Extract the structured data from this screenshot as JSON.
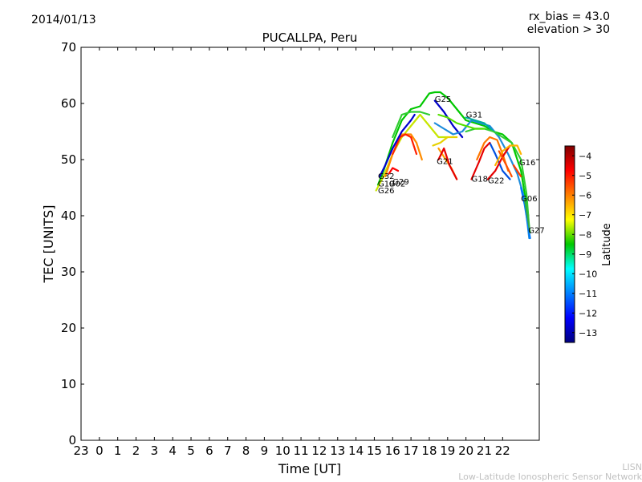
{
  "header": {
    "date": "2014/01/13",
    "rx_bias": "rx_bias = 43.0",
    "elevation": "elevation > 30"
  },
  "footer": {
    "org_abbrev": "LISN",
    "org_name": "Low-Latitude Ionospheric Sensor Network"
  },
  "chart_data": {
    "type": "line",
    "title": "PUCALLPA, Peru",
    "xlabel": "Time [UT]",
    "ylabel": "TEC [UNITS]",
    "xlim": [
      -1,
      24
    ],
    "ylim": [
      0,
      70
    ],
    "x_ticks": [
      -1,
      0,
      1,
      2,
      3,
      4,
      5,
      6,
      7,
      8,
      9,
      10,
      11,
      12,
      13,
      14,
      15,
      16,
      17,
      18,
      19,
      20,
      21,
      22
    ],
    "x_tick_labels": [
      "23",
      "0",
      "1",
      "2",
      "3",
      "4",
      "5",
      "6",
      "7",
      "8",
      "9",
      "10",
      "11",
      "12",
      "13",
      "14",
      "15",
      "16",
      "17",
      "18",
      "19",
      "20",
      "21",
      "22"
    ],
    "y_ticks": [
      0,
      10,
      20,
      30,
      40,
      50,
      60,
      70
    ],
    "y_tick_labels": [
      "0",
      "10",
      "20",
      "30",
      "40",
      "50",
      "60",
      "70"
    ],
    "grid": false,
    "colorbar": {
      "label": "Latitude",
      "range": [
        -13.5,
        -3.5
      ],
      "ticks": [
        -4,
        -5,
        -6,
        -7,
        -8,
        -9,
        -10,
        -11,
        -12,
        -13
      ],
      "tick_labels": [
        "−4",
        "−5",
        "−6",
        "−7",
        "−8",
        "−9",
        "−10",
        "−11",
        "−12",
        "−13"
      ],
      "colormap": "jet"
    },
    "series": [
      {
        "name": "G25",
        "color": "#00c800",
        "points": [
          [
            15.2,
            45.5
          ],
          [
            15.5,
            48
          ],
          [
            16.0,
            53
          ],
          [
            16.5,
            57
          ],
          [
            17.0,
            59
          ],
          [
            17.5,
            59.5
          ],
          [
            18.0,
            61.8
          ],
          [
            18.3,
            62
          ],
          [
            18.6,
            62
          ],
          [
            19.0,
            61
          ],
          [
            19.5,
            59
          ],
          [
            20.0,
            57
          ],
          [
            20.5,
            56.5
          ],
          [
            21.0,
            56
          ],
          [
            21.5,
            55
          ],
          [
            22.0,
            54.5
          ],
          [
            22.5,
            53
          ],
          [
            23.0,
            48
          ],
          [
            23.2,
            44
          ],
          [
            23.4,
            40
          ]
        ]
      },
      {
        "name": "G25",
        "color": "#0000c8",
        "points": [
          [
            18.3,
            60.5
          ],
          [
            18.8,
            58.5
          ],
          [
            19.3,
            56
          ],
          [
            19.8,
            54
          ]
        ]
      },
      {
        "name": "G31",
        "color": "#1e8cdc",
        "points": [
          [
            18.3,
            56.5
          ],
          [
            18.8,
            55.5
          ],
          [
            19.3,
            54.5
          ],
          [
            19.8,
            55
          ],
          [
            20.3,
            57
          ],
          [
            20.8,
            56.5
          ],
          [
            21.3,
            56
          ],
          [
            21.8,
            54
          ],
          [
            22.3,
            51
          ],
          [
            22.8,
            47.5
          ],
          [
            23.2,
            43
          ],
          [
            23.45,
            36
          ]
        ]
      },
      {
        "name": "G31",
        "color": "#00aaa0",
        "points": [
          [
            20.0,
            57.5
          ],
          [
            20.5,
            57
          ],
          [
            21.0,
            56.5
          ],
          [
            21.5,
            55
          ]
        ]
      },
      {
        "name": "G16",
        "color": "#33cc33",
        "points": [
          [
            20.0,
            55
          ],
          [
            20.5,
            55.5
          ],
          [
            21.0,
            55.5
          ],
          [
            21.5,
            55
          ],
          [
            22.0,
            54
          ],
          [
            22.5,
            53
          ],
          [
            23.0,
            50
          ],
          [
            23.3,
            44
          ],
          [
            23.45,
            38
          ]
        ]
      },
      {
        "name": "G16",
        "color": "#55e000",
        "points": [
          [
            18.5,
            58
          ],
          [
            19.0,
            57.5
          ],
          [
            19.5,
            56.5
          ],
          [
            20.0,
            56
          ],
          [
            20.5,
            55.5
          ],
          [
            21.0,
            55.5
          ]
        ]
      },
      {
        "name": "G16",
        "color": "#0050e0",
        "points": [
          [
            21.3,
            53
          ],
          [
            21.6,
            51
          ],
          [
            22.0,
            48
          ],
          [
            22.4,
            46.5
          ]
        ]
      },
      {
        "name": "G26",
        "color": "#c8e600",
        "points": [
          [
            15.1,
            44.5
          ],
          [
            15.5,
            47
          ],
          [
            16.0,
            51
          ],
          [
            16.5,
            54
          ],
          [
            17.0,
            56
          ],
          [
            17.5,
            58
          ],
          [
            18.0,
            56
          ],
          [
            18.5,
            54
          ],
          [
            19.0,
            54
          ]
        ]
      },
      {
        "name": "G26",
        "color": "#32cd32",
        "points": [
          [
            16.0,
            54
          ],
          [
            16.5,
            58
          ],
          [
            17.0,
            58.5
          ],
          [
            17.5,
            58.5
          ],
          [
            18.0,
            58
          ]
        ]
      },
      {
        "name": "G29",
        "color": "#ff8c00",
        "points": [
          [
            15.6,
            47
          ],
          [
            16.0,
            51
          ],
          [
            16.5,
            54.5
          ],
          [
            17.0,
            54.5
          ],
          [
            17.3,
            53
          ],
          [
            17.6,
            50
          ]
        ]
      },
      {
        "name": "G29",
        "color": "#ff2000",
        "points": [
          [
            16.0,
            51
          ],
          [
            16.4,
            54
          ],
          [
            16.7,
            54.5
          ],
          [
            17.0,
            54
          ],
          [
            17.3,
            51
          ]
        ]
      },
      {
        "name": "G21",
        "color": "#ffa000",
        "points": [
          [
            18.5,
            52
          ],
          [
            18.8,
            50.5
          ],
          [
            19.2,
            48.5
          ],
          [
            19.5,
            46.5
          ]
        ]
      },
      {
        "name": "G21",
        "color": "#e60000",
        "points": [
          [
            18.5,
            50
          ],
          [
            18.8,
            52
          ],
          [
            19.1,
            49
          ],
          [
            19.5,
            46.5
          ]
        ]
      },
      {
        "name": "G21",
        "color": "#e6d200",
        "points": [
          [
            18.2,
            52.5
          ],
          [
            18.6,
            53
          ],
          [
            19.0,
            54
          ],
          [
            19.5,
            54
          ]
        ]
      },
      {
        "name": "G18",
        "color": "#e60000",
        "points": [
          [
            20.3,
            46.5
          ],
          [
            20.7,
            49.5
          ],
          [
            21.0,
            52
          ],
          [
            21.3,
            53
          ]
        ]
      },
      {
        "name": "G18",
        "color": "#ff7800",
        "points": [
          [
            20.6,
            50
          ],
          [
            21.0,
            53
          ],
          [
            21.3,
            54
          ],
          [
            21.7,
            53.5
          ],
          [
            22.0,
            51
          ],
          [
            22.3,
            48
          ]
        ]
      },
      {
        "name": "G22",
        "color": "#e60000",
        "points": [
          [
            21.2,
            46.5
          ],
          [
            21.6,
            48
          ],
          [
            22.0,
            50.5
          ],
          [
            22.4,
            52.5
          ]
        ]
      },
      {
        "name": "G22",
        "color": "#ffb400",
        "points": [
          [
            21.6,
            49
          ],
          [
            22.0,
            51.5
          ],
          [
            22.4,
            52.5
          ],
          [
            22.8,
            52.5
          ],
          [
            23.0,
            51
          ]
        ]
      },
      {
        "name": "G22",
        "color": "#ff5000",
        "points": [
          [
            21.8,
            51.5
          ],
          [
            22.2,
            49
          ],
          [
            22.5,
            47
          ]
        ]
      },
      {
        "name": "G16",
        "color": "#ff3c00",
        "points": [
          [
            22.6,
            49
          ],
          [
            22.8,
            48
          ],
          [
            23.0,
            47
          ]
        ]
      },
      {
        "name": "G06",
        "color": "#0078ff",
        "points": [
          [
            23.0,
            45
          ],
          [
            23.2,
            42
          ],
          [
            23.4,
            38
          ],
          [
            23.5,
            36
          ]
        ]
      },
      {
        "name": "G27",
        "color": "#33aa44",
        "points": [
          [
            23.2,
            43
          ],
          [
            23.4,
            39
          ],
          [
            23.5,
            37
          ]
        ]
      },
      {
        "name": "G19",
        "color": "#0000d0",
        "points": [
          [
            15.3,
            47
          ],
          [
            15.6,
            49
          ],
          [
            16.0,
            52
          ],
          [
            16.5,
            55
          ],
          [
            17.0,
            57
          ],
          [
            17.2,
            58
          ]
        ]
      },
      {
        "name": "G32",
        "color": "#ff0000",
        "points": [
          [
            15.8,
            47.5
          ],
          [
            16.0,
            48.5
          ],
          [
            16.3,
            48
          ]
        ]
      }
    ],
    "annotations": [
      {
        "text": "G25",
        "x": 18.3,
        "y": 60.3
      },
      {
        "text": "G31",
        "x": 20.0,
        "y": 57.5
      },
      {
        "text": "G16",
        "x": 22.9,
        "y": 49.0
      },
      {
        "text": "G21",
        "x": 18.4,
        "y": 49.2
      },
      {
        "text": "G18",
        "x": 20.3,
        "y": 46.1
      },
      {
        "text": "G22",
        "x": 21.2,
        "y": 45.8
      },
      {
        "text": "G06",
        "x": 23.0,
        "y": 42.6
      },
      {
        "text": "G27",
        "x": 23.4,
        "y": 36.9
      },
      {
        "text": "G32",
        "x": 15.2,
        "y": 46.6
      },
      {
        "text": "G19",
        "x": 15.2,
        "y": 45.2
      },
      {
        "text": "G29",
        "x": 16.0,
        "y": 45.6
      },
      {
        "text": "G26",
        "x": 15.2,
        "y": 44.0
      },
      {
        "text": "G02",
        "x": 15.8,
        "y": 45.2
      }
    ]
  }
}
